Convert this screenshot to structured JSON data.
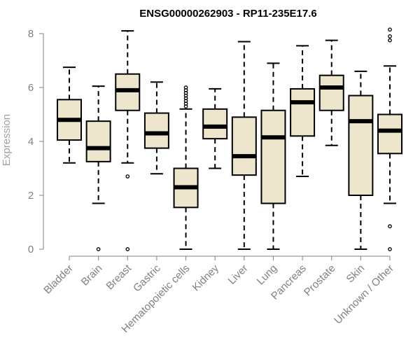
{
  "chart_data": {
    "type": "boxplot",
    "title": "ENSG00000262903 - RP11-235E17.6",
    "xlabel": "",
    "ylabel": "Expression",
    "ylim": [
      0,
      8
    ],
    "yticks": [
      0,
      2,
      4,
      6,
      8
    ],
    "colors": {
      "box_fill": "#ede6cc",
      "stroke": "#000000",
      "axis": "#808080"
    },
    "categories": [
      "Bladder",
      "Brain",
      "Breast",
      "Gastric",
      "Hematopoietic cells",
      "Kidney",
      "Liver",
      "Lung",
      "Pancreas",
      "Prostate",
      "Skin",
      "Unknown / Other"
    ],
    "boxes": [
      {
        "name": "Bladder",
        "whisker_low": 3.2,
        "q1": 4.05,
        "median": 4.8,
        "q3": 5.55,
        "whisker_high": 6.75,
        "outliers": []
      },
      {
        "name": "Brain",
        "whisker_low": 1.7,
        "q1": 3.25,
        "median": 3.75,
        "q3": 4.75,
        "whisker_high": 6.05,
        "outliers": [
          0.0
        ]
      },
      {
        "name": "Breast",
        "whisker_low": 3.2,
        "q1": 5.15,
        "median": 5.9,
        "q3": 6.5,
        "whisker_high": 8.1,
        "outliers": [
          2.7,
          0.0
        ]
      },
      {
        "name": "Gastric",
        "whisker_low": 2.8,
        "q1": 3.75,
        "median": 4.3,
        "q3": 5.05,
        "whisker_high": 6.2,
        "outliers": []
      },
      {
        "name": "Hematopoietic cells",
        "whisker_low": 0.0,
        "q1": 1.55,
        "median": 2.3,
        "q3": 3.0,
        "whisker_high": 5.2,
        "outliers": [
          5.3,
          5.4,
          5.5,
          5.6,
          5.7,
          5.8,
          5.9,
          6.0
        ]
      },
      {
        "name": "Kidney",
        "whisker_low": 3.0,
        "q1": 4.1,
        "median": 4.55,
        "q3": 5.2,
        "whisker_high": 5.95,
        "outliers": []
      },
      {
        "name": "Liver",
        "whisker_low": 0.0,
        "q1": 2.75,
        "median": 3.45,
        "q3": 4.9,
        "whisker_high": 7.7,
        "outliers": []
      },
      {
        "name": "Lung",
        "whisker_low": 0.0,
        "q1": 1.7,
        "median": 4.15,
        "q3": 5.15,
        "whisker_high": 6.9,
        "outliers": []
      },
      {
        "name": "Pancreas",
        "whisker_low": 2.7,
        "q1": 4.2,
        "median": 5.45,
        "q3": 5.95,
        "whisker_high": 7.55,
        "outliers": []
      },
      {
        "name": "Prostate",
        "whisker_low": 3.85,
        "q1": 5.15,
        "median": 6.0,
        "q3": 6.45,
        "whisker_high": 7.75,
        "outliers": []
      },
      {
        "name": "Skin",
        "whisker_low": 0.0,
        "q1": 2.0,
        "median": 4.75,
        "q3": 5.7,
        "whisker_high": 6.6,
        "outliers": []
      },
      {
        "name": "Unknown / Other",
        "whisker_low": 1.7,
        "q1": 3.55,
        "median": 4.4,
        "q3": 5.0,
        "whisker_high": 6.8,
        "outliers": [
          0.85,
          0.0,
          7.75,
          7.9,
          8.15
        ]
      }
    ]
  }
}
